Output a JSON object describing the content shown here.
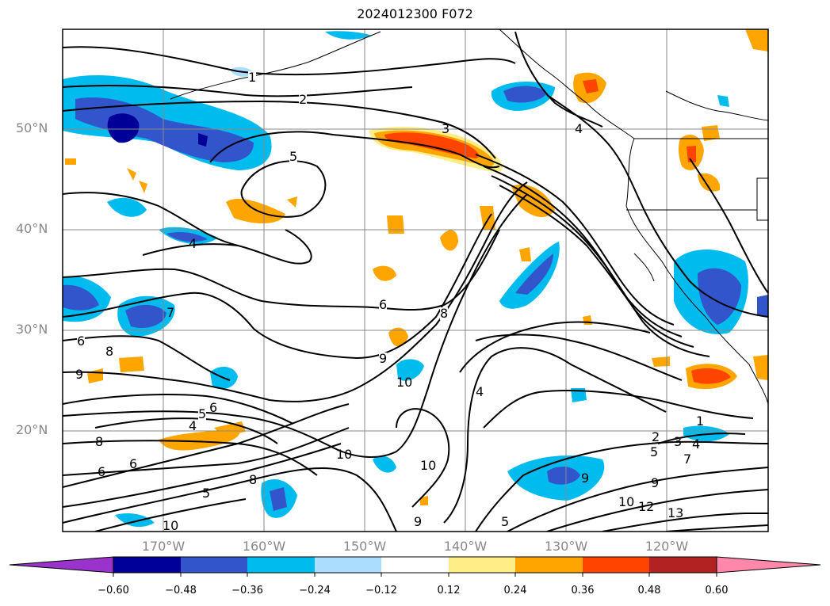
{
  "title": "2024012300 F072",
  "lat_labels": [
    "50°N",
    "40°N",
    "30°N",
    "20°N"
  ],
  "lon_labels": [
    "170°W",
    "160°W",
    "150°W",
    "140°W",
    "130°W",
    "120°W"
  ],
  "contour_labels": [
    "1",
    "2",
    "3",
    "4",
    "5",
    "6",
    "7",
    "8",
    "9",
    "10",
    "4",
    "5",
    "4",
    "6",
    "6",
    "8",
    "9",
    "8",
    "9",
    "10",
    "4",
    "5",
    "6",
    "8",
    "10",
    "1",
    "2",
    "3",
    "4",
    "5",
    "7",
    "9",
    "10",
    "12",
    "13",
    "5",
    "6",
    "10",
    "9"
  ],
  "colorbar": {
    "levels": [
      "−0.60",
      "−0.48",
      "−0.36",
      "−0.24",
      "−0.12",
      "0.12",
      "0.24",
      "0.36",
      "0.48",
      "0.60"
    ],
    "colors": [
      "#9933cc",
      "#000099",
      "#3355cc",
      "#00bbee",
      "#aaddff",
      "#ffffff",
      "#ffee88",
      "#ffa500",
      "#ff4400",
      "#b22222",
      "#ff88aa"
    ]
  },
  "colors": {
    "strong_neg": "#000099",
    "mid_neg": "#3355cc",
    "neg": "#00bbee",
    "weak_neg": "#aaddff",
    "weak_pos": "#ffee88",
    "pos": "#ffa500",
    "mid_pos": "#ff4400",
    "strong_pos": "#b22222"
  }
}
